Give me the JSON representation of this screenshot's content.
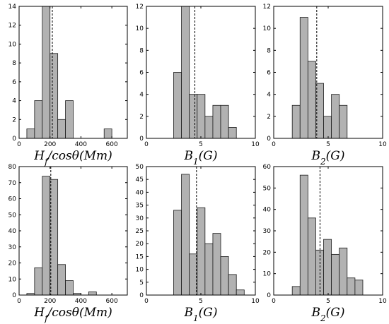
{
  "chart_data": [
    {
      "type": "bar",
      "xlabel": "H_f/cosθ(Mm)",
      "xlim": [
        0,
        700
      ],
      "ylim": [
        0,
        14
      ],
      "xticks": [
        0,
        200,
        400,
        600
      ],
      "yticks": [
        0,
        2,
        4,
        6,
        8,
        10,
        12,
        14
      ],
      "bin_width": 50,
      "bins": [
        {
          "x0": 50,
          "value": 1
        },
        {
          "x0": 100,
          "value": 4
        },
        {
          "x0": 150,
          "value": 14
        },
        {
          "x0": 200,
          "value": 9
        },
        {
          "x0": 250,
          "value": 2
        },
        {
          "x0": 300,
          "value": 4
        },
        {
          "x0": 550,
          "value": 1
        }
      ],
      "dashed_line_x": 215
    },
    {
      "type": "bar",
      "xlabel": "B_1(G)",
      "xlim": [
        0,
        10
      ],
      "ylim": [
        0,
        12
      ],
      "xticks": [
        0,
        5,
        10
      ],
      "yticks": [
        0,
        2,
        4,
        6,
        8,
        10,
        12
      ],
      "bin_width": 0.72,
      "bins": [
        {
          "x0": 2.5,
          "value": 6
        },
        {
          "x0": 3.22,
          "value": 12
        },
        {
          "x0": 3.94,
          "value": 4
        },
        {
          "x0": 4.66,
          "value": 4
        },
        {
          "x0": 5.38,
          "value": 2
        },
        {
          "x0": 6.1,
          "value": 3
        },
        {
          "x0": 6.82,
          "value": 3
        },
        {
          "x0": 7.54,
          "value": 1
        }
      ],
      "dashed_line_x": 4.45
    },
    {
      "type": "bar",
      "xlabel": "B_2(G)",
      "xlim": [
        0,
        10
      ],
      "ylim": [
        0,
        12
      ],
      "xticks": [
        0,
        5,
        10
      ],
      "yticks": [
        0,
        2,
        4,
        6,
        8,
        10,
        12
      ],
      "bin_width": 0.72,
      "bins": [
        {
          "x0": 1.7,
          "value": 3
        },
        {
          "x0": 2.42,
          "value": 11
        },
        {
          "x0": 3.14,
          "value": 7
        },
        {
          "x0": 3.86,
          "value": 5
        },
        {
          "x0": 4.58,
          "value": 2
        },
        {
          "x0": 5.3,
          "value": 4
        },
        {
          "x0": 6.02,
          "value": 3
        }
      ],
      "dashed_line_x": 3.95
    },
    {
      "type": "bar",
      "xlabel": "H_f/cosθ(Mm)",
      "xlim": [
        0,
        700
      ],
      "ylim": [
        0,
        80
      ],
      "xticks": [
        0,
        200,
        400,
        600
      ],
      "yticks": [
        0,
        10,
        20,
        30,
        40,
        50,
        60,
        70,
        80
      ],
      "bin_width": 50,
      "bins": [
        {
          "x0": 50,
          "value": 1
        },
        {
          "x0": 100,
          "value": 17
        },
        {
          "x0": 150,
          "value": 74
        },
        {
          "x0": 200,
          "value": 72
        },
        {
          "x0": 250,
          "value": 19
        },
        {
          "x0": 300,
          "value": 9
        },
        {
          "x0": 350,
          "value": 1
        },
        {
          "x0": 450,
          "value": 2
        }
      ],
      "dashed_line_x": 205
    },
    {
      "type": "bar",
      "xlabel": "B_1(G)",
      "xlim": [
        0,
        10
      ],
      "ylim": [
        0,
        50
      ],
      "xticks": [
        0,
        5,
        10
      ],
      "yticks": [
        0,
        5,
        10,
        15,
        20,
        25,
        30,
        35,
        40,
        45,
        50
      ],
      "bin_width": 0.72,
      "bins": [
        {
          "x0": 2.5,
          "value": 33
        },
        {
          "x0": 3.22,
          "value": 47
        },
        {
          "x0": 3.94,
          "value": 16
        },
        {
          "x0": 4.66,
          "value": 34
        },
        {
          "x0": 5.38,
          "value": 20
        },
        {
          "x0": 6.1,
          "value": 24
        },
        {
          "x0": 6.82,
          "value": 15
        },
        {
          "x0": 7.54,
          "value": 8
        },
        {
          "x0": 8.26,
          "value": 2
        }
      ],
      "dashed_line_x": 4.6
    },
    {
      "type": "bar",
      "xlabel": "B_2(G)",
      "xlim": [
        0,
        10
      ],
      "ylim": [
        0,
        60
      ],
      "xticks": [
        0,
        5,
        10
      ],
      "yticks": [
        0,
        10,
        20,
        30,
        40,
        50,
        60
      ],
      "bin_width": 0.72,
      "bins": [
        {
          "x0": 1.7,
          "value": 4
        },
        {
          "x0": 2.42,
          "value": 56
        },
        {
          "x0": 3.14,
          "value": 36
        },
        {
          "x0": 3.86,
          "value": 21
        },
        {
          "x0": 4.58,
          "value": 26
        },
        {
          "x0": 5.3,
          "value": 19
        },
        {
          "x0": 6.02,
          "value": 22
        },
        {
          "x0": 6.74,
          "value": 8
        },
        {
          "x0": 7.46,
          "value": 7
        }
      ],
      "dashed_line_x": 4.25
    }
  ]
}
